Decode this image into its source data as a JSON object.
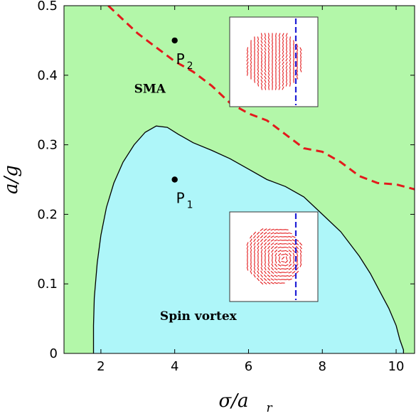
{
  "chart_data": {
    "type": "area",
    "xlabel": "σ/a",
    "xlabel_sub": "r",
    "ylabel": "a/g",
    "xlim": [
      1,
      10.5
    ],
    "ylim": [
      0,
      0.5
    ],
    "xticks": [
      2,
      4,
      6,
      8,
      10
    ],
    "yticks": [
      0,
      0.1,
      0.2,
      0.3,
      0.4,
      0.5
    ],
    "ytick_labels": [
      "0",
      "0.1",
      "0.2",
      "0.3",
      "0.4",
      "0.5"
    ],
    "colors": {
      "sma_region": "#b3f7a9",
      "vortex_region": "#aef6f9",
      "boundary": "#000000",
      "dashed_line": "#e31a1c",
      "inset_arrows": "#e31a1c",
      "inset_cut": "#1f1fd6"
    },
    "regions": [
      {
        "name": "SMA",
        "label": "SMA",
        "label_at": {
          "x": 2.9,
          "y": 0.375
        }
      },
      {
        "name": "Spin vortex",
        "label": "Spin    vortex",
        "label_at": {
          "x": 3.6,
          "y": 0.048
        }
      }
    ],
    "vortex_boundary": {
      "x": [
        1.8,
        1.8,
        1.82,
        1.9,
        2.0,
        2.15,
        2.35,
        2.6,
        2.9,
        3.2,
        3.5,
        3.8,
        4.1,
        4.5,
        5.0,
        5.5,
        6.0,
        6.5,
        7.0,
        7.5,
        8.0,
        8.5,
        9.0,
        9.3,
        9.6,
        9.8,
        10.0,
        10.1,
        10.2,
        10.2
      ],
      "y": [
        0,
        0.04,
        0.08,
        0.13,
        0.17,
        0.21,
        0.245,
        0.275,
        0.3,
        0.318,
        0.327,
        0.325,
        0.315,
        0.303,
        0.292,
        0.28,
        0.265,
        0.25,
        0.24,
        0.225,
        0.2,
        0.175,
        0.14,
        0.115,
        0.085,
        0.065,
        0.04,
        0.02,
        0.005,
        0
      ]
    },
    "dashed_boundary": {
      "x": [
        2.2,
        2.6,
        3.0,
        3.5,
        4.0,
        4.5,
        5.0,
        5.5,
        6.0,
        6.5,
        7.0,
        7.5,
        8.0,
        8.5,
        9.0,
        9.5,
        10.0,
        10.5
      ],
      "y": [
        0.5,
        0.48,
        0.46,
        0.44,
        0.42,
        0.405,
        0.385,
        0.36,
        0.345,
        0.335,
        0.315,
        0.295,
        0.29,
        0.275,
        0.255,
        0.245,
        0.243,
        0.236
      ]
    },
    "points": [
      {
        "label": "P",
        "sub": "2",
        "x": 4,
        "y": 0.45
      },
      {
        "label": "P",
        "sub": "1",
        "x": 4,
        "y": 0.25
      }
    ],
    "insets": [
      {
        "name": "sma-inset",
        "pattern": "parallel-arrows"
      },
      {
        "name": "vortex-inset",
        "pattern": "vortex-arrows"
      }
    ]
  }
}
